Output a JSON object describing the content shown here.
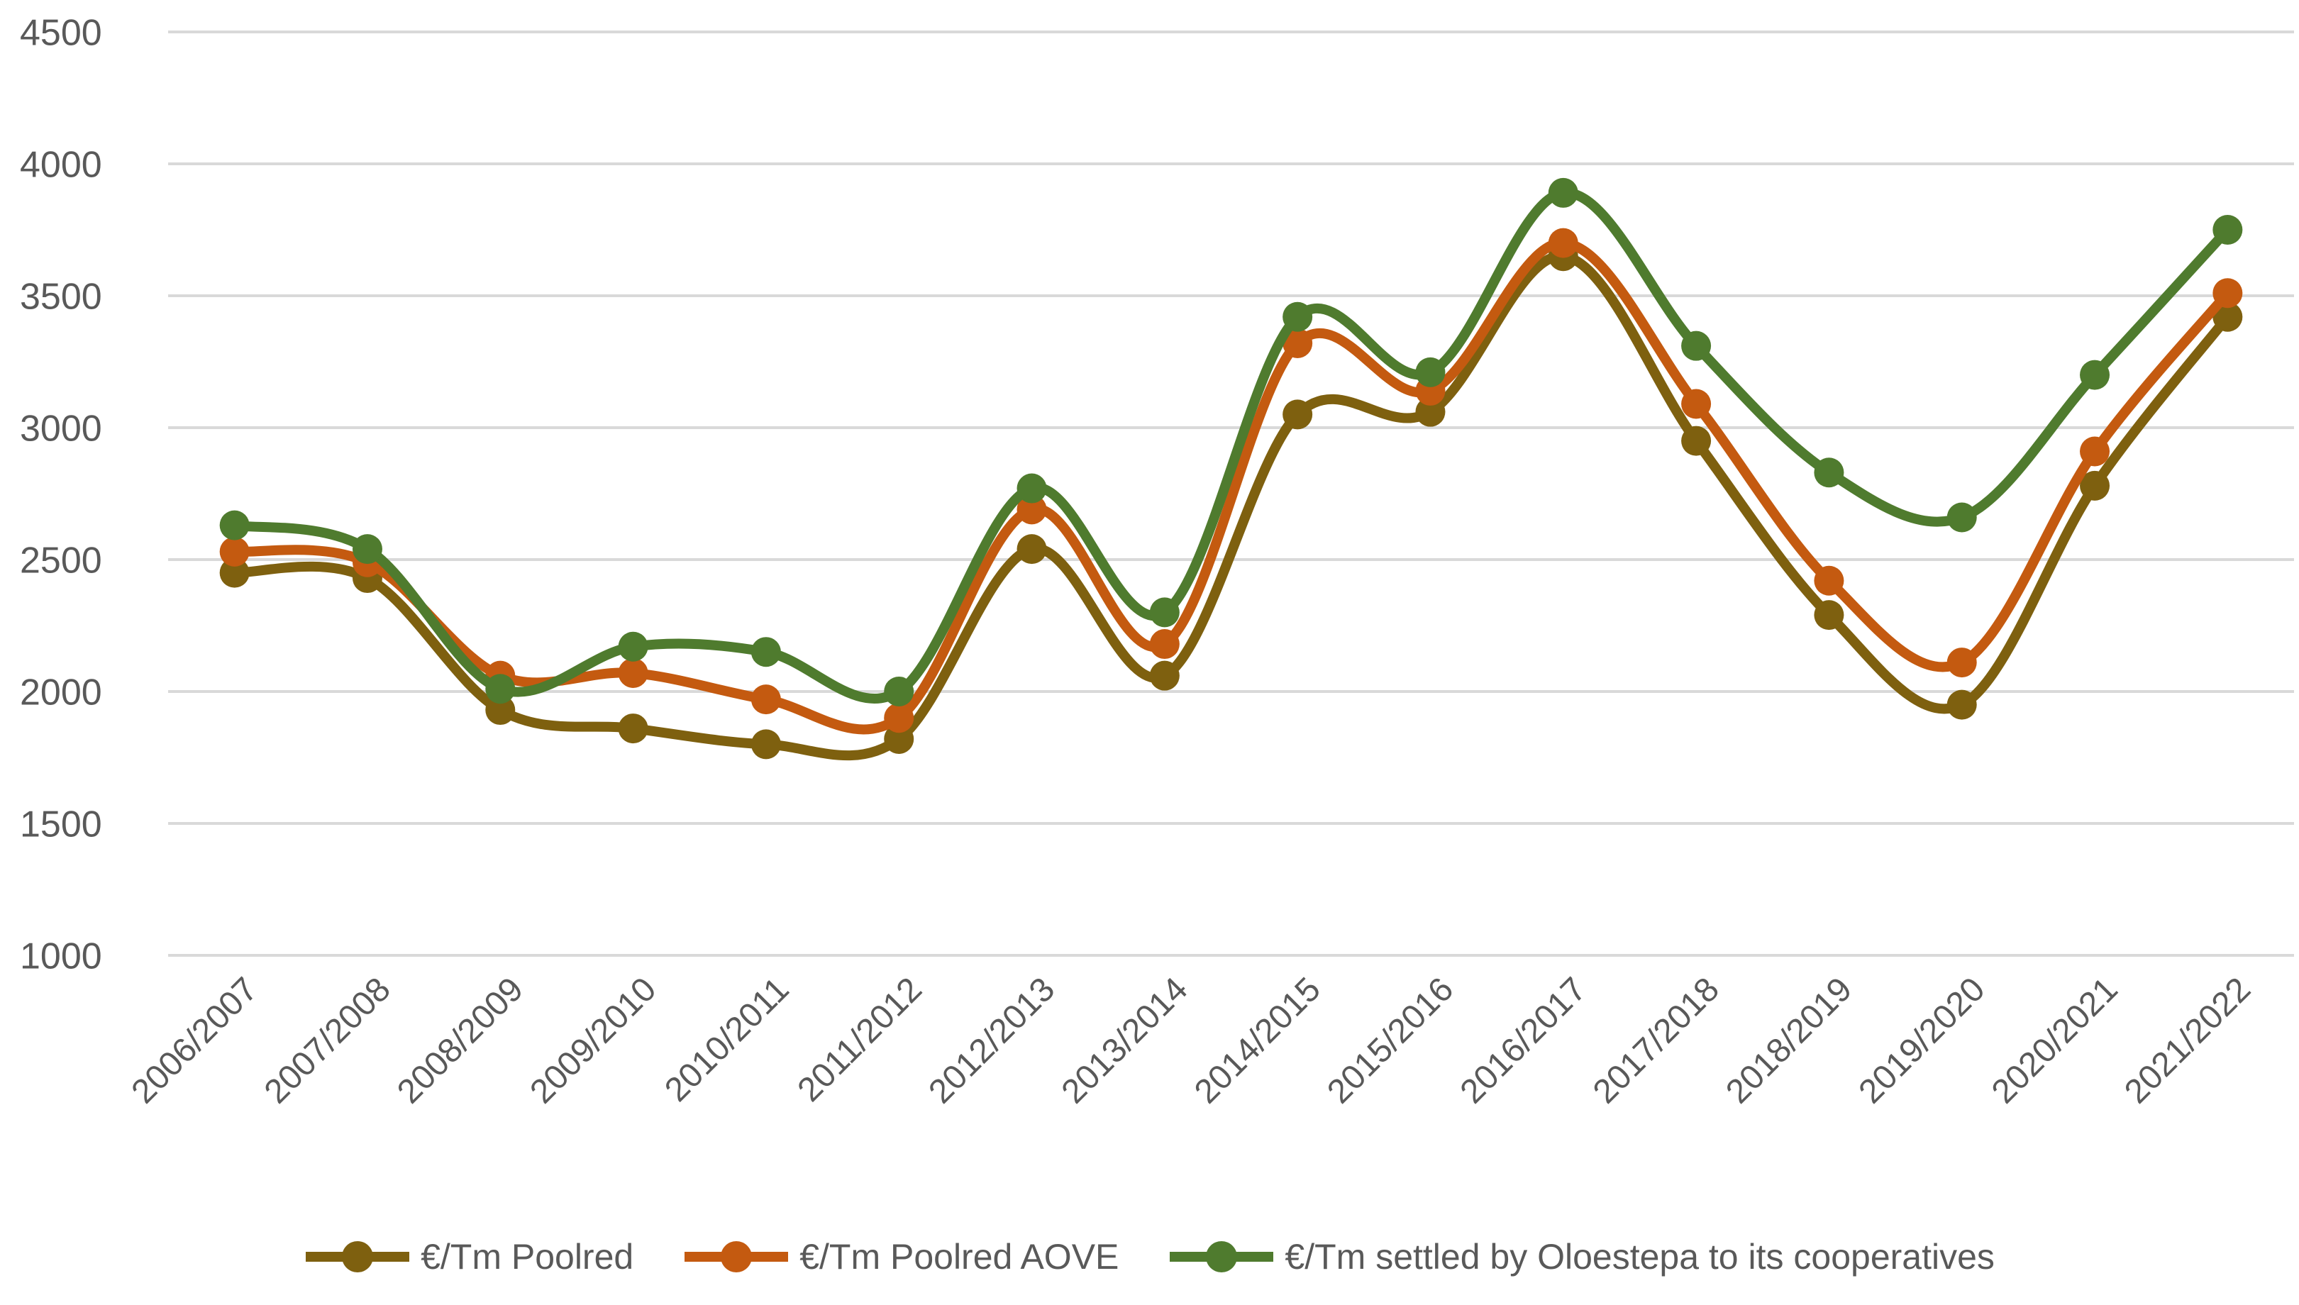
{
  "chart_data": {
    "type": "line",
    "title": "",
    "xlabel": "",
    "ylabel": "",
    "categories": [
      "2006/2007",
      "2007/2008",
      "2008/2009",
      "2009/2010",
      "2010/2011",
      "2011/2012",
      "2012/2013",
      "2013/2014",
      "2014/2015",
      "2015/2016",
      "2016/2017",
      "2017/2018",
      "2018/2019",
      "2019/2020",
      "2020/2021",
      "2021/2022"
    ],
    "series": [
      {
        "name": "€/Tm Poolred",
        "color": "#7E600F",
        "values": [
          2450,
          2430,
          1930,
          1860,
          1800,
          1820,
          2540,
          2060,
          3050,
          3060,
          3650,
          2950,
          2290,
          1950,
          2780,
          3420
        ]
      },
      {
        "name": "€/Tm Poolred AOVE",
        "color": "#C45A10",
        "values": [
          2530,
          2490,
          2060,
          2070,
          1970,
          1900,
          2690,
          2180,
          3320,
          3140,
          3700,
          3090,
          2420,
          2110,
          2910,
          3510
        ]
      },
      {
        "name": "€/Tm settled by Oloestepa to its cooperatives",
        "color": "#4F7B2E",
        "values": [
          2630,
          2540,
          2010,
          2170,
          2150,
          2000,
          2770,
          2300,
          3420,
          3210,
          3890,
          3310,
          2830,
          2660,
          3200,
          3750
        ]
      }
    ],
    "ylim": [
      1000,
      4500
    ],
    "ytick_step": 500,
    "yticks": [
      1000,
      1500,
      2000,
      2500,
      3000,
      3500,
      4000,
      4500
    ],
    "grid": true,
    "smooth": true,
    "legend_position": "bottom",
    "x_tick_rotation_deg": 45,
    "colors": {
      "gridline": "#D9D9D9",
      "tick_label": "#595959",
      "background": "#FFFFFF"
    }
  }
}
